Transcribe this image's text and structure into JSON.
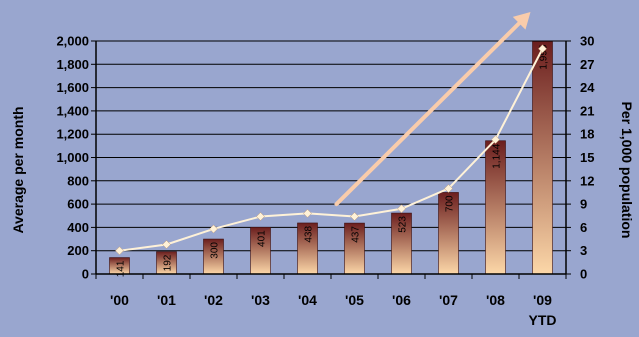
{
  "chart_data": {
    "type": "bar",
    "categories": [
      "'00",
      "'01",
      "'02",
      "'03",
      "'04",
      "'05",
      "'06",
      "'07",
      "'08",
      "'09"
    ],
    "category_sublabels": [
      "",
      "",
      "",
      "",
      "",
      "",
      "",
      "",
      "",
      "YTD"
    ],
    "series": [
      {
        "type": "bar",
        "axis": "left",
        "values": [
          141,
          192,
          300,
          401,
          438,
          437,
          523,
          700,
          1144,
          1995
        ],
        "data_labels": [
          "141",
          "192",
          "300",
          "401",
          "438",
          "437",
          "523",
          "700",
          "1,144",
          "1,995"
        ]
      },
      {
        "type": "line",
        "axis": "right",
        "values": [
          3.0,
          3.8,
          5.8,
          7.4,
          7.8,
          7.4,
          8.4,
          11.0,
          17.3,
          29.0
        ]
      }
    ],
    "y_left": {
      "label": "Average per month",
      "ylim": [
        0,
        2000
      ],
      "ticks": [
        "0",
        "200",
        "400",
        "600",
        "800",
        "1,000",
        "1,200",
        "1,400",
        "1,600",
        "1,800",
        "2,000"
      ]
    },
    "y_right": {
      "label": "Per 1,000 population",
      "ylim": [
        0,
        30
      ],
      "ticks": [
        "0",
        "3",
        "6",
        "9",
        "12",
        "15",
        "18",
        "21",
        "24",
        "27",
        "30"
      ]
    },
    "grid": true,
    "legend": "none",
    "annotation": "upward trend arrow",
    "colors": {
      "background": "#99a6cf",
      "bar_light": "#fcd7a8",
      "bar_dark": "#6b1e1e",
      "line": "#fff2d8",
      "arrow": "#f9ccab",
      "grid": "#000000"
    }
  }
}
